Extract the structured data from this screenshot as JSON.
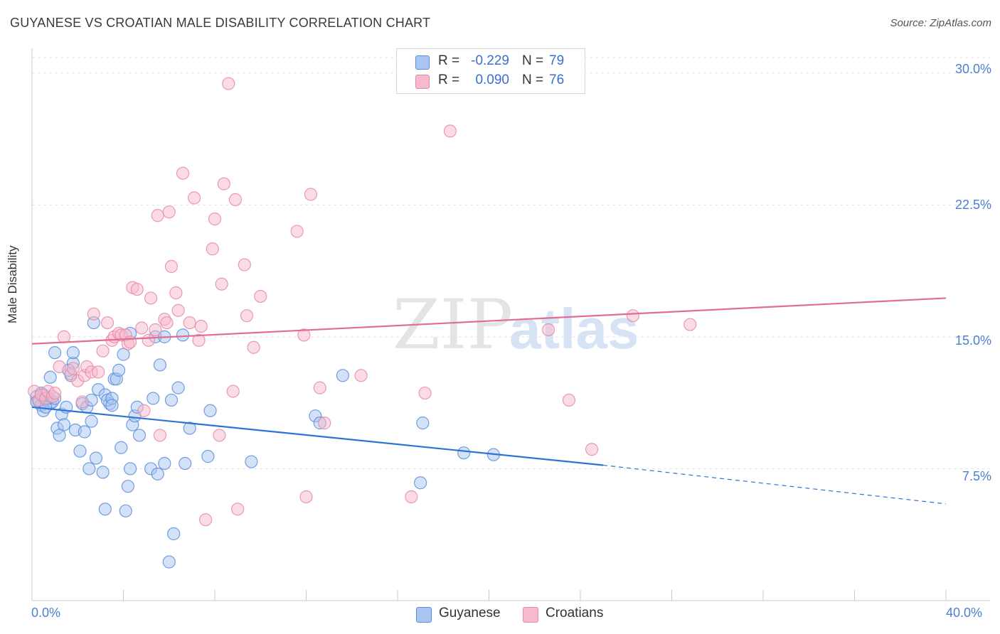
{
  "title": "GUYANESE VS CROATIAN MALE DISABILITY CORRELATION CHART",
  "source": "Source: ZipAtlas.com",
  "watermark": {
    "zip": "ZIP",
    "atlas": "atlas"
  },
  "legend_top": [
    {
      "r_label": "R =",
      "r_value": "-0.229",
      "n_label": "N =",
      "n_value": "79"
    },
    {
      "r_label": "R =",
      "r_value": "0.090",
      "n_label": "N =",
      "n_value": "76"
    }
  ],
  "legend_bottom": [
    {
      "label": "Guyanese"
    },
    {
      "label": "Croatians"
    }
  ],
  "colors": {
    "guyanese_fill": "#a9c6f2",
    "guyanese_stroke": "#5b8ed9",
    "guyanese_line": "#2d73d2",
    "croatians_fill": "#f7b9cc",
    "croatians_stroke": "#e58aa6",
    "croatians_line": "#e06e93",
    "tick_text": "#4a7fd1"
  },
  "chart_data": {
    "type": "scatter",
    "title": "GUYANESE VS CROATIAN MALE DISABILITY CORRELATION CHART",
    "xlabel": "",
    "ylabel": "Male Disability",
    "xlim": [
      0,
      40
    ],
    "ylim": [
      0,
      31
    ],
    "x_tick_labels": [
      {
        "value": 0,
        "label": "0.0%"
      },
      {
        "value": 40,
        "label": "40.0%"
      }
    ],
    "y_tick_labels": [
      {
        "value": 7.5,
        "label": "7.5%"
      },
      {
        "value": 15.0,
        "label": "15.0%"
      },
      {
        "value": 22.5,
        "label": "22.5%"
      },
      {
        "value": 30.0,
        "label": "30.0%"
      }
    ],
    "series": [
      {
        "name": "Guyanese",
        "r": -0.229,
        "n": 79,
        "trend": {
          "x0": 0,
          "y0": 11.0,
          "x1": 25,
          "y1": 7.7,
          "dashed_to_x": 40,
          "dashed_to_y": 5.5
        },
        "points": [
          [
            0.2,
            11.6
          ],
          [
            0.3,
            11.3
          ],
          [
            0.4,
            11.1
          ],
          [
            0.5,
            11.7
          ],
          [
            0.6,
            11.4
          ],
          [
            0.7,
            11.5
          ],
          [
            0.5,
            10.8
          ],
          [
            0.8,
            11.2
          ],
          [
            0.9,
            11.3
          ],
          [
            1.0,
            11.5
          ],
          [
            0.8,
            12.7
          ],
          [
            1.0,
            14.1
          ],
          [
            1.3,
            10.6
          ],
          [
            1.1,
            9.8
          ],
          [
            1.4,
            10.0
          ],
          [
            1.2,
            9.4
          ],
          [
            1.5,
            11.0
          ],
          [
            1.7,
            12.8
          ],
          [
            1.8,
            13.5
          ],
          [
            1.8,
            14.1
          ],
          [
            1.9,
            9.7
          ],
          [
            2.1,
            8.5
          ],
          [
            2.2,
            11.2
          ],
          [
            2.3,
            9.6
          ],
          [
            2.5,
            7.5
          ],
          [
            2.4,
            11.0
          ],
          [
            2.6,
            10.2
          ],
          [
            2.6,
            11.4
          ],
          [
            2.7,
            15.8
          ],
          [
            2.8,
            8.1
          ],
          [
            2.9,
            12.0
          ],
          [
            3.1,
            7.3
          ],
          [
            3.2,
            11.7
          ],
          [
            3.2,
            5.2
          ],
          [
            3.4,
            11.2
          ],
          [
            3.3,
            11.4
          ],
          [
            3.5,
            11.5
          ],
          [
            3.5,
            11.1
          ],
          [
            3.6,
            12.6
          ],
          [
            3.7,
            12.6
          ],
          [
            3.8,
            13.1
          ],
          [
            3.9,
            8.7
          ],
          [
            4.0,
            14.0
          ],
          [
            4.1,
            5.1
          ],
          [
            4.2,
            6.5
          ],
          [
            4.3,
            7.5
          ],
          [
            4.3,
            15.2
          ],
          [
            4.4,
            10.0
          ],
          [
            4.5,
            10.5
          ],
          [
            4.6,
            11.0
          ],
          [
            4.7,
            9.4
          ],
          [
            5.2,
            7.5
          ],
          [
            5.3,
            11.5
          ],
          [
            5.4,
            15.0
          ],
          [
            5.5,
            7.2
          ],
          [
            5.6,
            13.4
          ],
          [
            5.8,
            7.8
          ],
          [
            5.8,
            15.0
          ],
          [
            6.0,
            2.2
          ],
          [
            6.1,
            11.4
          ],
          [
            6.2,
            3.8
          ],
          [
            6.4,
            12.1
          ],
          [
            6.6,
            15.1
          ],
          [
            6.7,
            7.8
          ],
          [
            6.9,
            9.8
          ],
          [
            7.7,
            8.2
          ],
          [
            7.8,
            10.8
          ],
          [
            9.6,
            7.9
          ],
          [
            12.4,
            10.5
          ],
          [
            12.6,
            10.1
          ],
          [
            13.6,
            12.8
          ],
          [
            17.0,
            6.7
          ],
          [
            17.1,
            10.1
          ],
          [
            18.9,
            8.4
          ],
          [
            20.2,
            8.3
          ],
          [
            0.2,
            11.3
          ],
          [
            0.4,
            11.8
          ],
          [
            0.6,
            11.0
          ],
          [
            1.6,
            13.1
          ]
        ]
      },
      {
        "name": "Croatians",
        "r": 0.09,
        "n": 76,
        "trend": {
          "x0": 0,
          "y0": 14.6,
          "x1": 40,
          "y1": 17.2
        },
        "points": [
          [
            0.1,
            11.9
          ],
          [
            0.3,
            11.4
          ],
          [
            0.4,
            11.7
          ],
          [
            0.6,
            11.5
          ],
          [
            0.7,
            11.9
          ],
          [
            0.9,
            11.6
          ],
          [
            1.0,
            11.8
          ],
          [
            1.2,
            13.3
          ],
          [
            1.4,
            15.0
          ],
          [
            1.7,
            12.9
          ],
          [
            1.8,
            13.2
          ],
          [
            2.0,
            12.5
          ],
          [
            2.2,
            11.3
          ],
          [
            2.3,
            12.8
          ],
          [
            2.4,
            13.3
          ],
          [
            2.6,
            13.0
          ],
          [
            2.7,
            16.3
          ],
          [
            2.9,
            13.0
          ],
          [
            3.1,
            14.2
          ],
          [
            3.3,
            15.8
          ],
          [
            3.5,
            14.8
          ],
          [
            3.6,
            15.0
          ],
          [
            3.8,
            15.2
          ],
          [
            3.9,
            15.1
          ],
          [
            4.1,
            15.1
          ],
          [
            4.2,
            14.6
          ],
          [
            4.3,
            14.7
          ],
          [
            4.4,
            17.8
          ],
          [
            4.6,
            17.7
          ],
          [
            4.8,
            15.5
          ],
          [
            4.9,
            10.8
          ],
          [
            5.1,
            14.8
          ],
          [
            5.2,
            17.2
          ],
          [
            5.4,
            15.4
          ],
          [
            5.5,
            21.9
          ],
          [
            5.6,
            9.4
          ],
          [
            5.8,
            16.0
          ],
          [
            5.9,
            15.8
          ],
          [
            6.0,
            22.1
          ],
          [
            6.1,
            19.0
          ],
          [
            6.3,
            17.5
          ],
          [
            6.4,
            16.5
          ],
          [
            6.6,
            24.3
          ],
          [
            6.9,
            15.8
          ],
          [
            7.1,
            22.9
          ],
          [
            7.3,
            14.8
          ],
          [
            7.4,
            15.6
          ],
          [
            7.6,
            4.6
          ],
          [
            7.9,
            20.0
          ],
          [
            8.0,
            21.7
          ],
          [
            8.2,
            9.4
          ],
          [
            8.3,
            18.0
          ],
          [
            8.4,
            23.7
          ],
          [
            8.6,
            29.4
          ],
          [
            8.8,
            11.9
          ],
          [
            8.9,
            22.8
          ],
          [
            9.0,
            5.2
          ],
          [
            9.3,
            19.1
          ],
          [
            9.4,
            16.2
          ],
          [
            9.7,
            14.4
          ],
          [
            10.0,
            17.3
          ],
          [
            11.6,
            21.0
          ],
          [
            11.9,
            15.1
          ],
          [
            12.0,
            5.9
          ],
          [
            12.2,
            23.1
          ],
          [
            12.6,
            12.1
          ],
          [
            12.8,
            10.1
          ],
          [
            14.4,
            12.8
          ],
          [
            16.6,
            5.9
          ],
          [
            17.2,
            11.8
          ],
          [
            18.3,
            26.7
          ],
          [
            22.6,
            15.4
          ],
          [
            23.5,
            11.4
          ],
          [
            24.5,
            8.6
          ],
          [
            26.3,
            16.2
          ],
          [
            28.8,
            15.7
          ]
        ]
      }
    ]
  }
}
